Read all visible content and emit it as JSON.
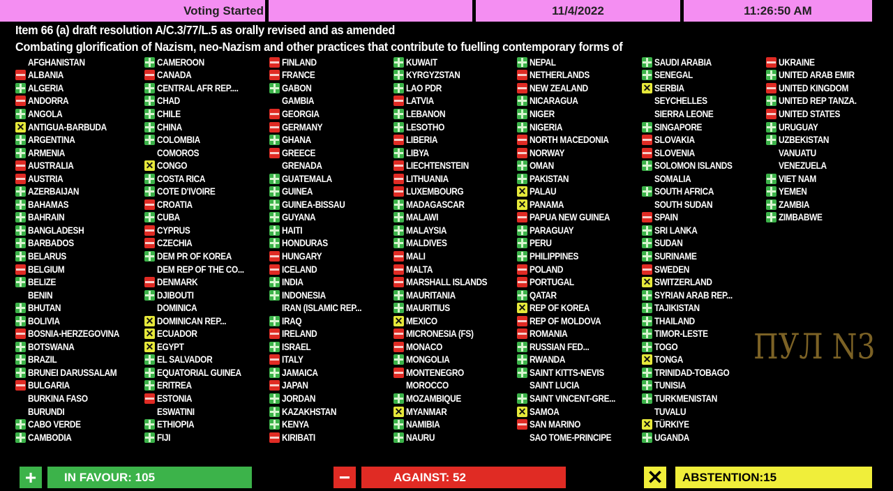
{
  "header": {
    "status": "Voting Started",
    "blank": "",
    "date": "11/4/2022",
    "time": "11:26:50 AM",
    "color": "#f48ef2"
  },
  "title_line1": "Item 66 (a) draft resolution A/C.3/77/L.5 as orally revised and as amended",
  "title_line2": "Combating glorification of Nazism, neo-Nazism and other practices that contribute to fuelling contemporary forms of",
  "vote_legend": {
    "Y": "plus-icon (in favour)",
    "N": "minus-icon (against)",
    "A": "x-icon (abstention)",
    "": "no vote"
  },
  "columns": [
    [
      [
        "AFGHANISTAN",
        ""
      ],
      [
        "ALBANIA",
        "N"
      ],
      [
        "ALGERIA",
        "Y"
      ],
      [
        "ANDORRA",
        "N"
      ],
      [
        "ANGOLA",
        "Y"
      ],
      [
        "ANTIGUA-BARBUDA",
        "A"
      ],
      [
        "ARGENTINA",
        "Y"
      ],
      [
        "ARMENIA",
        "Y"
      ],
      [
        "AUSTRALIA",
        "N"
      ],
      [
        "AUSTRIA",
        "N"
      ],
      [
        "AZERBAIJAN",
        "Y"
      ],
      [
        "BAHAMAS",
        "Y"
      ],
      [
        "BAHRAIN",
        "Y"
      ],
      [
        "BANGLADESH",
        "Y"
      ],
      [
        "BARBADOS",
        "Y"
      ],
      [
        "BELARUS",
        "Y"
      ],
      [
        "BELGIUM",
        "N"
      ],
      [
        "BELIZE",
        "Y"
      ],
      [
        "BENIN",
        ""
      ],
      [
        "BHUTAN",
        "Y"
      ],
      [
        "BOLIVIA",
        "Y"
      ],
      [
        "BOSNIA-HERZEGOVINA",
        "N"
      ],
      [
        "BOTSWANA",
        "Y"
      ],
      [
        "BRAZIL",
        "Y"
      ],
      [
        "BRUNEI DARUSSALAM",
        "Y"
      ],
      [
        "BULGARIA",
        "N"
      ],
      [
        "BURKINA FASO",
        ""
      ],
      [
        "BURUNDI",
        ""
      ],
      [
        "CABO VERDE",
        "Y"
      ],
      [
        "CAMBODIA",
        "Y"
      ]
    ],
    [
      [
        "CAMEROON",
        "Y"
      ],
      [
        "CANADA",
        "N"
      ],
      [
        "CENTRAL AFR REP....",
        "Y"
      ],
      [
        "CHAD",
        "Y"
      ],
      [
        "CHILE",
        "Y"
      ],
      [
        "CHINA",
        "Y"
      ],
      [
        "COLOMBIA",
        "Y"
      ],
      [
        "COMOROS",
        ""
      ],
      [
        "CONGO",
        "A"
      ],
      [
        "COSTA RICA",
        "Y"
      ],
      [
        "COTE D'IVOIRE",
        "Y"
      ],
      [
        "CROATIA",
        "N"
      ],
      [
        "CUBA",
        "Y"
      ],
      [
        "CYPRUS",
        "N"
      ],
      [
        "CZECHIA",
        "N"
      ],
      [
        "DEM PR OF KOREA",
        "Y"
      ],
      [
        "DEM REP OF THE CO...",
        ""
      ],
      [
        "DENMARK",
        "N"
      ],
      [
        "DJIBOUTI",
        "Y"
      ],
      [
        "DOMINICA",
        ""
      ],
      [
        "DOMINICAN REP...",
        "A"
      ],
      [
        "ECUADOR",
        "A"
      ],
      [
        "EGYPT",
        "A"
      ],
      [
        "EL SALVADOR",
        "Y"
      ],
      [
        "EQUATORIAL GUINEA",
        "Y"
      ],
      [
        "ERITREA",
        "Y"
      ],
      [
        "ESTONIA",
        "N"
      ],
      [
        "ESWATINI",
        ""
      ],
      [
        "ETHIOPIA",
        "Y"
      ],
      [
        "FIJI",
        "Y"
      ]
    ],
    [
      [
        "FINLAND",
        "N"
      ],
      [
        "FRANCE",
        "N"
      ],
      [
        "GABON",
        "Y"
      ],
      [
        "GAMBIA",
        ""
      ],
      [
        "GEORGIA",
        "N"
      ],
      [
        "GERMANY",
        "N"
      ],
      [
        "GHANA",
        "Y"
      ],
      [
        "GREECE",
        "N"
      ],
      [
        "GRENADA",
        ""
      ],
      [
        "GUATEMALA",
        "Y"
      ],
      [
        "GUINEA",
        "Y"
      ],
      [
        "GUINEA-BISSAU",
        "Y"
      ],
      [
        "GUYANA",
        "Y"
      ],
      [
        "HAITI",
        "Y"
      ],
      [
        "HONDURAS",
        "Y"
      ],
      [
        "HUNGARY",
        "N"
      ],
      [
        "ICELAND",
        "N"
      ],
      [
        "INDIA",
        "Y"
      ],
      [
        "INDONESIA",
        "Y"
      ],
      [
        "IRAN (ISLAMIC REP...",
        ""
      ],
      [
        "IRAQ",
        "Y"
      ],
      [
        "IRELAND",
        "N"
      ],
      [
        "ISRAEL",
        "Y"
      ],
      [
        "ITALY",
        "N"
      ],
      [
        "JAMAICA",
        "Y"
      ],
      [
        "JAPAN",
        "N"
      ],
      [
        "JORDAN",
        "Y"
      ],
      [
        "KAZAKHSTAN",
        "Y"
      ],
      [
        "KENYA",
        "Y"
      ],
      [
        "KIRIBATI",
        "N"
      ]
    ],
    [
      [
        "KUWAIT",
        "Y"
      ],
      [
        "KYRGYZSTAN",
        "Y"
      ],
      [
        "LAO PDR",
        "Y"
      ],
      [
        "LATVIA",
        "N"
      ],
      [
        "LEBANON",
        "Y"
      ],
      [
        "LESOTHO",
        "Y"
      ],
      [
        "LIBERIA",
        "N"
      ],
      [
        "LIBYA",
        "Y"
      ],
      [
        "LIECHTENSTEIN",
        "N"
      ],
      [
        "LITHUANIA",
        "N"
      ],
      [
        "LUXEMBOURG",
        "N"
      ],
      [
        "MADAGASCAR",
        "Y"
      ],
      [
        "MALAWI",
        "Y"
      ],
      [
        "MALAYSIA",
        "Y"
      ],
      [
        "MALDIVES",
        "Y"
      ],
      [
        "MALI",
        "N"
      ],
      [
        "MALTA",
        "N"
      ],
      [
        "MARSHALL ISLANDS",
        "N"
      ],
      [
        "MAURITANIA",
        "Y"
      ],
      [
        "MAURITIUS",
        "Y"
      ],
      [
        "MEXICO",
        "A"
      ],
      [
        "MICRONESIA (FS)",
        "N"
      ],
      [
        "MONACO",
        "N"
      ],
      [
        "MONGOLIA",
        "Y"
      ],
      [
        "MONTENEGRO",
        "N"
      ],
      [
        "MOROCCO",
        ""
      ],
      [
        "MOZAMBIQUE",
        "Y"
      ],
      [
        "MYANMAR",
        "A"
      ],
      [
        "NAMIBIA",
        "Y"
      ],
      [
        "NAURU",
        "Y"
      ]
    ],
    [
      [
        "NEPAL",
        "Y"
      ],
      [
        "NETHERLANDS",
        "N"
      ],
      [
        "NEW ZEALAND",
        "N"
      ],
      [
        "NICARAGUA",
        "Y"
      ],
      [
        "NIGER",
        "Y"
      ],
      [
        "NIGERIA",
        "Y"
      ],
      [
        "NORTH MACEDONIA",
        "N"
      ],
      [
        "NORWAY",
        "N"
      ],
      [
        "OMAN",
        "Y"
      ],
      [
        "PAKISTAN",
        "Y"
      ],
      [
        "PALAU",
        "A"
      ],
      [
        "PANAMA",
        "A"
      ],
      [
        "PAPUA NEW GUINEA",
        "N"
      ],
      [
        "PARAGUAY",
        "Y"
      ],
      [
        "PERU",
        "Y"
      ],
      [
        "PHILIPPINES",
        "Y"
      ],
      [
        "POLAND",
        "N"
      ],
      [
        "PORTUGAL",
        "N"
      ],
      [
        "QATAR",
        "Y"
      ],
      [
        "REP OF KOREA",
        "A"
      ],
      [
        "REP OF MOLDOVA",
        "N"
      ],
      [
        "ROMANIA",
        "N"
      ],
      [
        "RUSSIAN FED...",
        "Y"
      ],
      [
        "RWANDA",
        "Y"
      ],
      [
        "SAINT KITTS-NEVIS",
        "Y"
      ],
      [
        "SAINT LUCIA",
        ""
      ],
      [
        "SAINT VINCENT-GRE...",
        "Y"
      ],
      [
        "SAMOA",
        "A"
      ],
      [
        "SAN MARINO",
        "N"
      ],
      [
        "SAO TOME-PRINCIPE",
        ""
      ]
    ],
    [
      [
        "SAUDI ARABIA",
        "Y"
      ],
      [
        "SENEGAL",
        "Y"
      ],
      [
        "SERBIA",
        "A"
      ],
      [
        "SEYCHELLES",
        ""
      ],
      [
        "SIERRA LEONE",
        ""
      ],
      [
        "SINGAPORE",
        "Y"
      ],
      [
        "SLOVAKIA",
        "N"
      ],
      [
        "SLOVENIA",
        "N"
      ],
      [
        "SOLOMON ISLANDS",
        "Y"
      ],
      [
        "SOMALIA",
        ""
      ],
      [
        "SOUTH AFRICA",
        "Y"
      ],
      [
        "SOUTH SUDAN",
        ""
      ],
      [
        "SPAIN",
        "N"
      ],
      [
        "SRI LANKA",
        "Y"
      ],
      [
        "SUDAN",
        "Y"
      ],
      [
        "SURINAME",
        "Y"
      ],
      [
        "SWEDEN",
        "N"
      ],
      [
        "SWITZERLAND",
        "A"
      ],
      [
        "SYRIAN ARAB REP...",
        "Y"
      ],
      [
        "TAJIKISTAN",
        "Y"
      ],
      [
        "THAILAND",
        "Y"
      ],
      [
        "TIMOR-LESTE",
        "Y"
      ],
      [
        "TOGO",
        "Y"
      ],
      [
        "TONGA",
        "A"
      ],
      [
        "TRINIDAD-TOBAGO",
        "Y"
      ],
      [
        "TUNISIA",
        "Y"
      ],
      [
        "TURKMENISTAN",
        "Y"
      ],
      [
        "TUVALU",
        ""
      ],
      [
        "TÜRKIYE",
        "A"
      ],
      [
        "UGANDA",
        "Y"
      ]
    ],
    [
      [
        "UKRAINE",
        "N"
      ],
      [
        "UNITED ARAB EMIR",
        "Y"
      ],
      [
        "UNITED KINGDOM",
        "N"
      ],
      [
        "UNITED REP TANZA.",
        "Y"
      ],
      [
        "UNITED STATES",
        "N"
      ],
      [
        "URUGUAY",
        "Y"
      ],
      [
        "UZBEKISTAN",
        "Y"
      ],
      [
        "VANUATU",
        ""
      ],
      [
        "VENEZUELA",
        ""
      ],
      [
        "VIET NAM",
        "Y"
      ],
      [
        "YEMEN",
        "Y"
      ],
      [
        "ZAMBIA",
        "Y"
      ],
      [
        "ZIMBABWE",
        "Y"
      ]
    ]
  ],
  "totals": {
    "in_favour": "IN FAVOUR: 105",
    "against": "AGAINST: 52",
    "abstention": "ABSTENTION:15",
    "colors": {
      "in_favour": "#3cb34a",
      "against": "#e02b24",
      "abstention": "#f0ee3a"
    }
  },
  "watermark": "ПУЛ N3"
}
